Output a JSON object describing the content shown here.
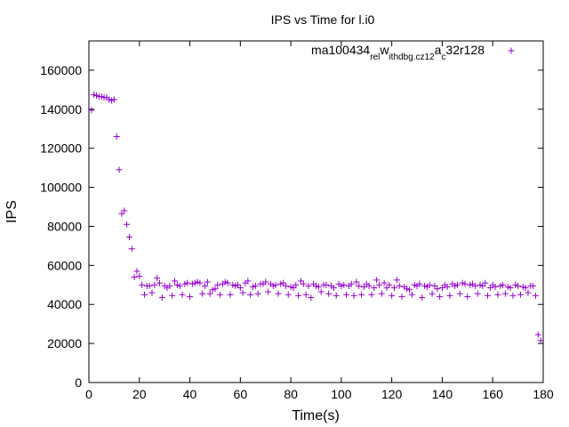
{
  "chart_data": {
    "type": "scatter",
    "title": "IPS vs Time for l.i0",
    "xlabel": "Time(s)",
    "ylabel": "IPS",
    "xlim": [
      0,
      180
    ],
    "ylim": [
      0,
      175000
    ],
    "xticks": [
      0,
      20,
      40,
      60,
      80,
      100,
      120,
      140,
      160,
      180
    ],
    "yticks": [
      0,
      20000,
      40000,
      60000,
      80000,
      100000,
      120000,
      140000,
      160000
    ],
    "grid": false,
    "legend_position": "top-right",
    "marker": "plus",
    "color": "#9400d3",
    "legend": {
      "parts": [
        {
          "text": "ma100434",
          "sub": false
        },
        {
          "text": "rel",
          "sub": true
        },
        {
          "text": "w",
          "sub": false
        },
        {
          "text": "ithdbg.cz12",
          "sub": true
        },
        {
          "text": "a",
          "sub": false
        },
        {
          "text": "c",
          "sub": true
        },
        {
          "text": "32r128",
          "sub": false
        }
      ]
    },
    "series": [
      {
        "name": "ma100434rel_with_dbg.cz12_ac32r128",
        "points": [
          [
            1,
            139500
          ],
          [
            2,
            147500
          ],
          [
            3,
            147000
          ],
          [
            4,
            146500
          ],
          [
            5,
            146500
          ],
          [
            6,
            146000
          ],
          [
            7,
            146000
          ],
          [
            8,
            145000
          ],
          [
            9,
            144500
          ],
          [
            10,
            145000
          ],
          [
            11,
            126000
          ],
          [
            12,
            109000
          ],
          [
            13,
            86500
          ],
          [
            14,
            88000
          ],
          [
            15,
            81000
          ],
          [
            16,
            74500
          ],
          [
            17,
            68500
          ],
          [
            18,
            54000
          ],
          [
            19,
            57000
          ],
          [
            20,
            54500
          ],
          [
            21,
            50000
          ],
          [
            22,
            45000
          ],
          [
            23,
            49500
          ],
          [
            24,
            49500
          ],
          [
            25,
            46000
          ],
          [
            26,
            50000
          ],
          [
            27,
            53500
          ],
          [
            28,
            51000
          ],
          [
            29,
            43500
          ],
          [
            30,
            49500
          ],
          [
            31,
            48500
          ],
          [
            32,
            49500
          ],
          [
            33,
            44500
          ],
          [
            34,
            52000
          ],
          [
            35,
            50000
          ],
          [
            36,
            49500
          ],
          [
            37,
            45000
          ],
          [
            38,
            50500
          ],
          [
            39,
            51000
          ],
          [
            40,
            44000
          ],
          [
            41,
            50500
          ],
          [
            42,
            51000
          ],
          [
            43,
            51500
          ],
          [
            44,
            51000
          ],
          [
            45,
            45500
          ],
          [
            46,
            49500
          ],
          [
            47,
            51500
          ],
          [
            48,
            45500
          ],
          [
            49,
            47500
          ],
          [
            50,
            48000
          ],
          [
            51,
            50000
          ],
          [
            52,
            45000
          ],
          [
            53,
            50500
          ],
          [
            54,
            51500
          ],
          [
            55,
            51000
          ],
          [
            56,
            45000
          ],
          [
            57,
            50000
          ],
          [
            58,
            49500
          ],
          [
            59,
            50000
          ],
          [
            60,
            48500
          ],
          [
            61,
            46000
          ],
          [
            62,
            51000
          ],
          [
            63,
            52000
          ],
          [
            64,
            45000
          ],
          [
            65,
            49000
          ],
          [
            66,
            49500
          ],
          [
            67,
            45500
          ],
          [
            68,
            50500
          ],
          [
            69,
            50500
          ],
          [
            70,
            51500
          ],
          [
            71,
            46500
          ],
          [
            72,
            50500
          ],
          [
            73,
            49500
          ],
          [
            74,
            50000
          ],
          [
            75,
            45500
          ],
          [
            76,
            50500
          ],
          [
            77,
            51000
          ],
          [
            78,
            49500
          ],
          [
            79,
            45000
          ],
          [
            80,
            49000
          ],
          [
            81,
            48500
          ],
          [
            82,
            50000
          ],
          [
            83,
            44500
          ],
          [
            84,
            52000
          ],
          [
            85,
            50500
          ],
          [
            86,
            45000
          ],
          [
            87,
            49500
          ],
          [
            88,
            43500
          ],
          [
            89,
            50500
          ],
          [
            90,
            49500
          ],
          [
            91,
            49000
          ],
          [
            92,
            46500
          ],
          [
            93,
            50000
          ],
          [
            94,
            50000
          ],
          [
            95,
            45500
          ],
          [
            96,
            49500
          ],
          [
            97,
            48500
          ],
          [
            98,
            44500
          ],
          [
            99,
            50500
          ],
          [
            100,
            49500
          ],
          [
            101,
            50000
          ],
          [
            102,
            45000
          ],
          [
            103,
            49500
          ],
          [
            104,
            50500
          ],
          [
            105,
            44500
          ],
          [
            106,
            51500
          ],
          [
            107,
            49500
          ],
          [
            108,
            45000
          ],
          [
            109,
            49000
          ],
          [
            110,
            50500
          ],
          [
            111,
            49500
          ],
          [
            112,
            45000
          ],
          [
            113,
            48500
          ],
          [
            114,
            52500
          ],
          [
            115,
            50000
          ],
          [
            116,
            45500
          ],
          [
            117,
            51000
          ],
          [
            118,
            48500
          ],
          [
            119,
            50000
          ],
          [
            120,
            44500
          ],
          [
            121,
            48500
          ],
          [
            122,
            52500
          ],
          [
            123,
            49500
          ],
          [
            124,
            44000
          ],
          [
            125,
            49000
          ],
          [
            126,
            48000
          ],
          [
            127,
            47500
          ],
          [
            128,
            45000
          ],
          [
            129,
            50000
          ],
          [
            130,
            49500
          ],
          [
            131,
            50500
          ],
          [
            132,
            43500
          ],
          [
            133,
            49500
          ],
          [
            134,
            49000
          ],
          [
            135,
            50000
          ],
          [
            136,
            45500
          ],
          [
            137,
            49500
          ],
          [
            138,
            48000
          ],
          [
            139,
            44000
          ],
          [
            140,
            48500
          ],
          [
            141,
            50000
          ],
          [
            142,
            49000
          ],
          [
            143,
            44500
          ],
          [
            144,
            50500
          ],
          [
            145,
            49500
          ],
          [
            146,
            50000
          ],
          [
            147,
            45500
          ],
          [
            148,
            51000
          ],
          [
            149,
            50500
          ],
          [
            150,
            44000
          ],
          [
            151,
            50000
          ],
          [
            152,
            50500
          ],
          [
            153,
            49500
          ],
          [
            154,
            45500
          ],
          [
            155,
            50000
          ],
          [
            156,
            49500
          ],
          [
            157,
            51000
          ],
          [
            158,
            44500
          ],
          [
            159,
            48500
          ],
          [
            160,
            50000
          ],
          [
            161,
            49000
          ],
          [
            162,
            45000
          ],
          [
            163,
            49500
          ],
          [
            164,
            50000
          ],
          [
            165,
            45500
          ],
          [
            166,
            49000
          ],
          [
            167,
            48500
          ],
          [
            168,
            44500
          ],
          [
            169,
            50000
          ],
          [
            170,
            49500
          ],
          [
            171,
            45000
          ],
          [
            172,
            49000
          ],
          [
            173,
            48500
          ],
          [
            174,
            46000
          ],
          [
            175,
            49500
          ],
          [
            176,
            49500
          ],
          [
            177,
            44500
          ],
          [
            178,
            24500
          ],
          [
            179,
            21500
          ]
        ]
      }
    ]
  }
}
